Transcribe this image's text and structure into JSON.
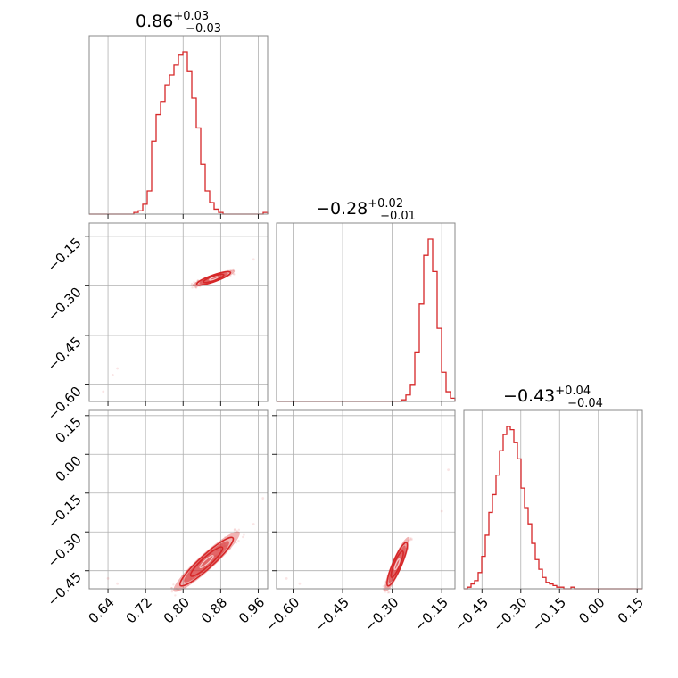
{
  "chart_data": {
    "type": "corner",
    "color": "#d62728",
    "parameters": [
      {
        "title": "0.86",
        "upper": "+0.03",
        "lower": "−0.03",
        "range": [
          0.6,
          0.98
        ],
        "ticks": [
          "0.64",
          "0.72",
          "0.80",
          "0.88",
          "0.96"
        ]
      },
      {
        "title": "−0.28",
        "upper": "+0.02",
        "lower": "−0.01",
        "range": [
          -0.65,
          -0.11
        ],
        "ticks": [
          "−0.60",
          "−0.45",
          "−0.30",
          "−0.15"
        ]
      },
      {
        "title": "−0.43",
        "upper": "+0.04",
        "lower": "−0.04",
        "range": [
          -0.52,
          0.17
        ],
        "ticks": [
          "−0.45",
          "−0.30",
          "−0.15",
          "0.00",
          "0.15"
        ]
      }
    ],
    "histograms": [
      {
        "edges": [
          0.6,
          0.98
        ],
        "bins": 40,
        "counts": [
          0,
          0,
          0,
          0,
          0,
          0,
          0,
          0,
          0,
          0,
          1,
          2,
          6,
          14,
          44,
          60,
          68,
          78,
          84,
          90,
          96,
          98,
          86,
          70,
          52,
          30,
          14,
          7,
          3,
          1,
          0,
          0,
          0,
          0,
          0,
          0,
          0,
          0,
          0,
          1
        ]
      },
      {
        "edges": [
          -0.65,
          -0.11
        ],
        "bins": 40,
        "counts": [
          0,
          0,
          0,
          0,
          0,
          0,
          0,
          0,
          0,
          0,
          0,
          0,
          0,
          0,
          0,
          0,
          0,
          0,
          0,
          0,
          0,
          0,
          0,
          0,
          0,
          0,
          0,
          0,
          1,
          4,
          10,
          30,
          60,
          90,
          100,
          80,
          45,
          18,
          6,
          2
        ]
      },
      {
        "edges": [
          -0.52,
          0.17
        ],
        "bins": 50,
        "counts": [
          0,
          1,
          3,
          5,
          10,
          20,
          33,
          47,
          58,
          70,
          85,
          95,
          100,
          98,
          90,
          80,
          62,
          50,
          40,
          28,
          18,
          12,
          7,
          4,
          3,
          2,
          1,
          1,
          0,
          0,
          1,
          0,
          0,
          0,
          0,
          0,
          0,
          0,
          0,
          0,
          0,
          0,
          0,
          0,
          0,
          0,
          0,
          0,
          0,
          0
        ]
      }
    ],
    "pairs": [
      {
        "x_param": 0,
        "y_param": 1,
        "center": [
          0.865,
          -0.282
        ],
        "corr_axis": [
          [
            0.82,
            -0.3
          ],
          [
            0.91,
            -0.255
          ]
        ],
        "outliers": [
          [
            0.63,
            -0.62
          ],
          [
            0.65,
            -0.57
          ],
          [
            0.66,
            -0.55
          ],
          [
            0.95,
            -0.22
          ]
        ]
      },
      {
        "x_param": 0,
        "y_param": 2,
        "center": [
          0.86,
          -0.43
        ],
        "corr_axis": [
          [
            0.78,
            -0.53
          ],
          [
            0.92,
            -0.3
          ]
        ],
        "outliers": [
          [
            0.64,
            -0.48
          ],
          [
            0.66,
            -0.5
          ],
          [
            0.95,
            -0.27
          ],
          [
            0.97,
            -0.17
          ]
        ]
      },
      {
        "x_param": 1,
        "y_param": 2,
        "center": [
          -0.285,
          -0.43
        ],
        "corr_axis": [
          [
            -0.32,
            -0.53
          ],
          [
            -0.25,
            -0.32
          ]
        ],
        "outliers": [
          [
            -0.62,
            -0.48
          ],
          [
            -0.58,
            -0.5
          ],
          [
            -0.15,
            -0.22
          ],
          [
            -0.13,
            -0.06
          ]
        ]
      }
    ]
  }
}
